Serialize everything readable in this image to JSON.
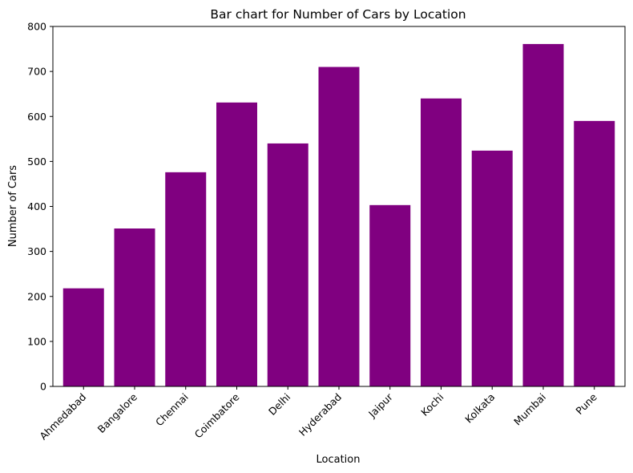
{
  "chart_data": {
    "type": "bar",
    "title": "Bar chart for Number of Cars by Location",
    "xlabel": "Location",
    "ylabel": "Number of Cars",
    "categories": [
      "Ahmedabad",
      "Bangalore",
      "Chennai",
      "Coimbatore",
      "Delhi",
      "Hyderabad",
      "Jaipur",
      "Kochi",
      "Kolkata",
      "Mumbai",
      "Pune"
    ],
    "values": [
      218,
      351,
      476,
      631,
      540,
      710,
      403,
      640,
      524,
      761,
      590
    ],
    "ylim": [
      0,
      800
    ],
    "yticks": [
      0,
      100,
      200,
      300,
      400,
      500,
      600,
      700,
      800
    ],
    "bar_color": "#800080",
    "grid": false,
    "legend": "none"
  }
}
